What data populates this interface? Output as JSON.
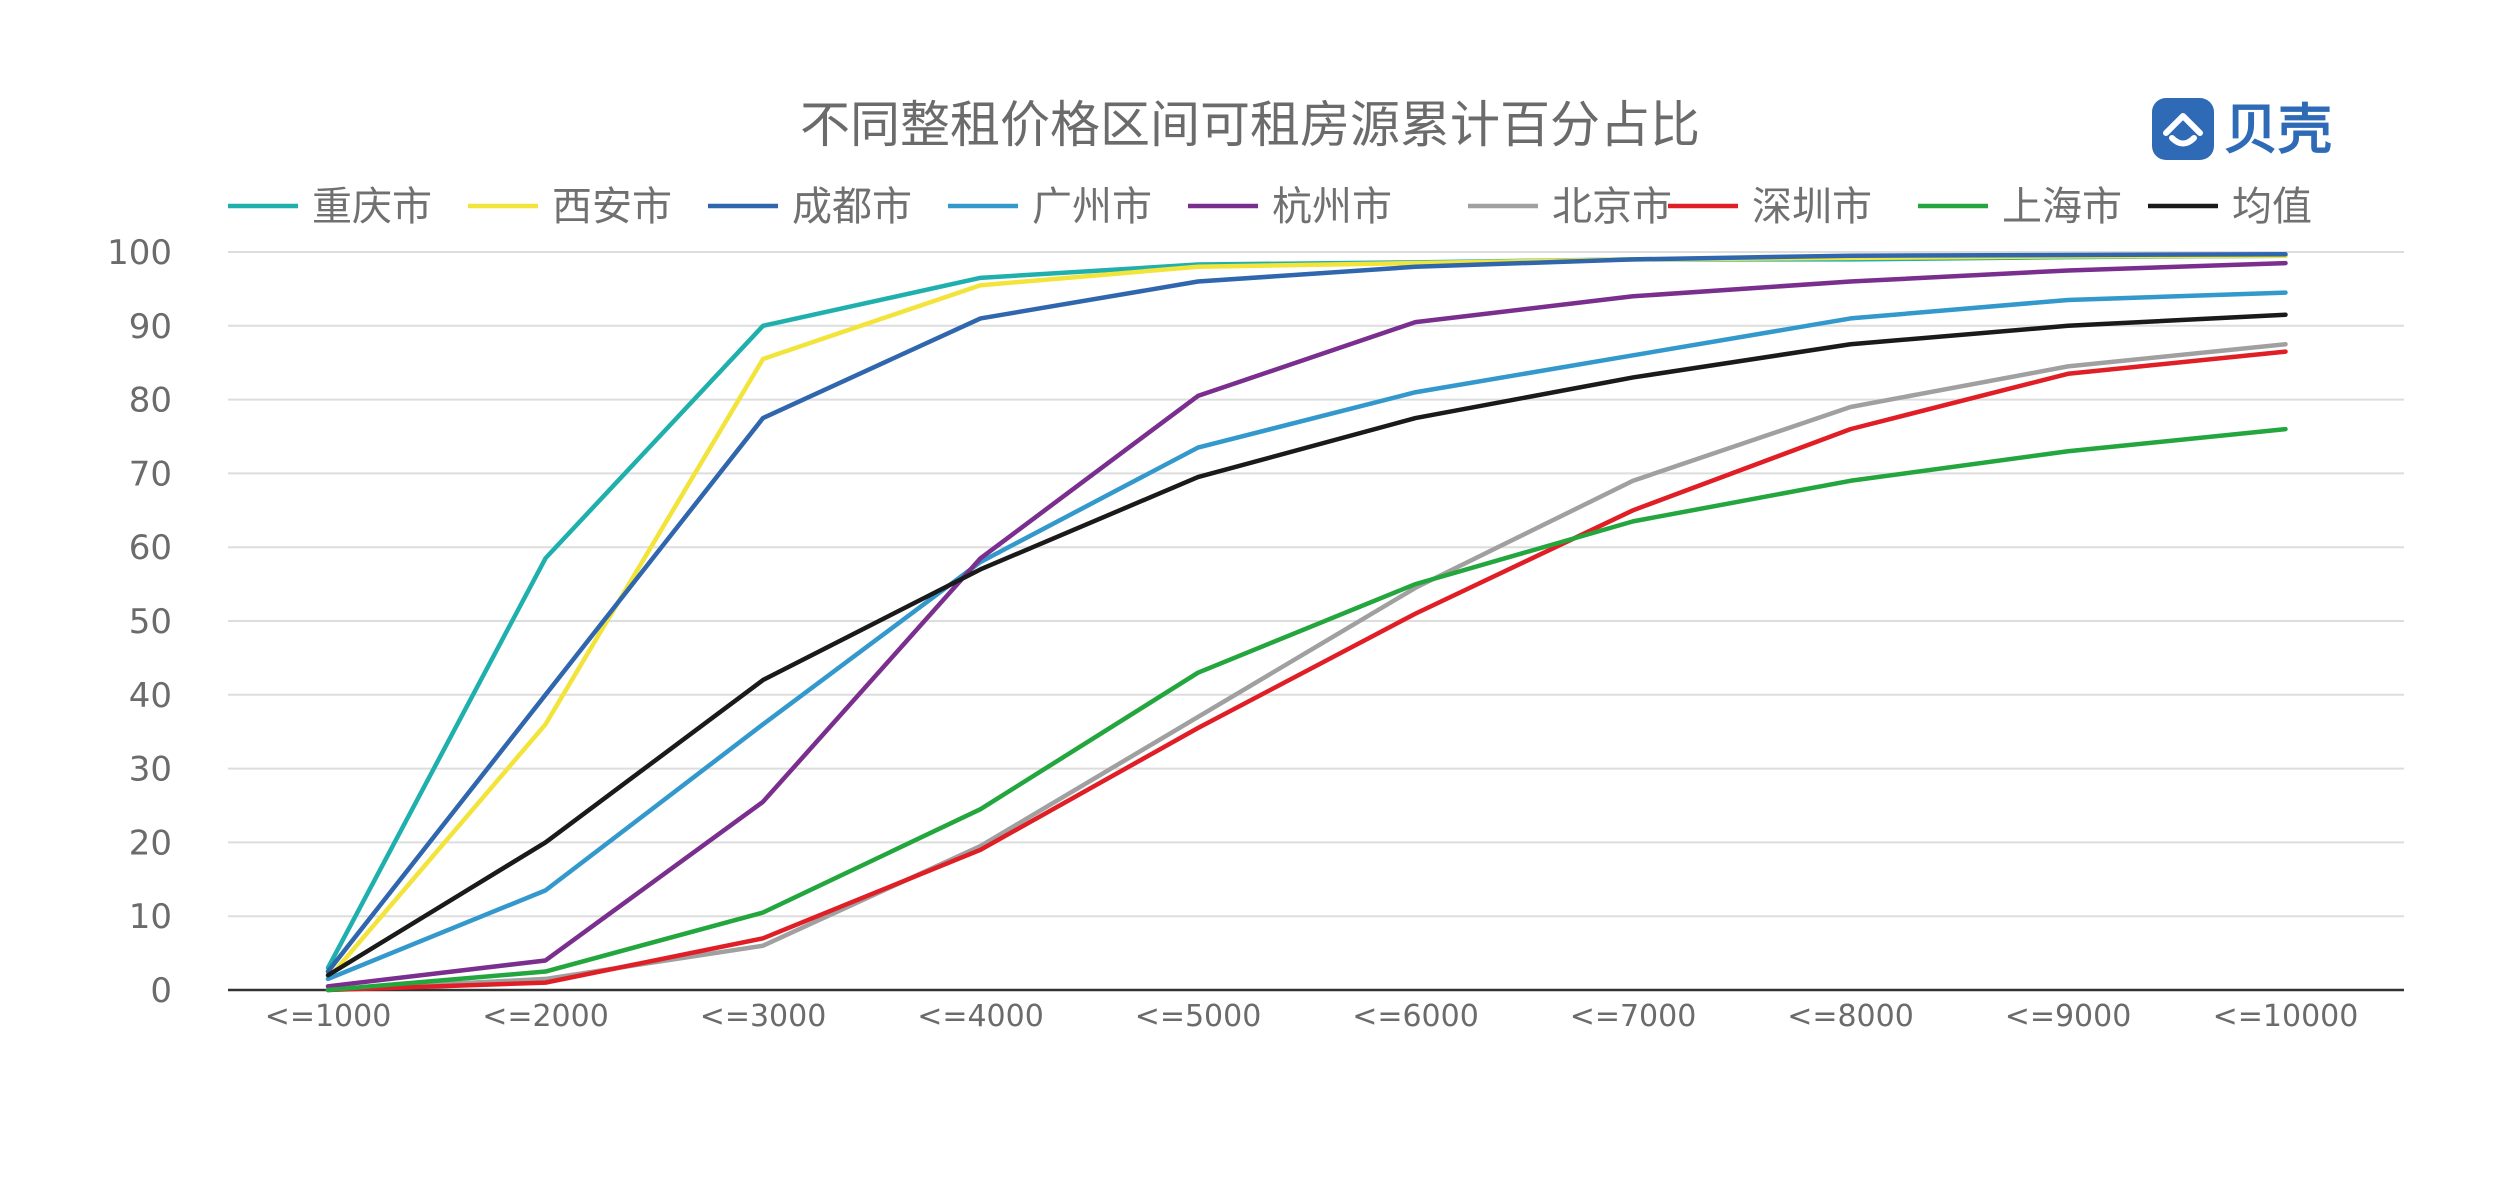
{
  "brand": {
    "name": "贝壳",
    "color": "#2f6ab7",
    "icon": "house-logo-icon"
  },
  "chart_data": {
    "type": "line",
    "title": "不同整租价格区间可租房源累计百分占比",
    "xlabel": "",
    "ylabel": "",
    "categories": [
      "<=1000",
      "<=2000",
      "<=3000",
      "<=4000",
      "<=5000",
      "<=6000",
      "<=7000",
      "<=8000",
      "<=9000",
      "<=10000"
    ],
    "ylim": [
      0,
      100
    ],
    "yticks": [
      0,
      10,
      20,
      30,
      40,
      50,
      60,
      70,
      80,
      90,
      100
    ],
    "grid": true,
    "legend_position": "top",
    "series": [
      {
        "name": "重庆市",
        "color": "#1fb0ad",
        "values": [
          3,
          58.5,
          90,
          96.5,
          98.3,
          98.6,
          99,
          99,
          99.3,
          99.5
        ]
      },
      {
        "name": "西安市",
        "color": "#f2e43a",
        "values": [
          1.5,
          36,
          85.5,
          95.5,
          98,
          98.5,
          99,
          99.2,
          99.4,
          99.5
        ]
      },
      {
        "name": "成都市",
        "color": "#2f66ad",
        "values": [
          2.5,
          40,
          77.5,
          91,
          96,
          98,
          99,
          99.5,
          99.6,
          99.7
        ]
      },
      {
        "name": "广州市",
        "color": "#3399cc",
        "values": [
          1.5,
          13.5,
          36,
          58,
          73.5,
          81,
          86,
          91,
          93.5,
          94.5
        ]
      },
      {
        "name": "杭州市",
        "color": "#7a2e8e",
        "values": [
          0.5,
          4,
          25.5,
          58.5,
          80.5,
          90.5,
          94,
          96,
          97.5,
          98.5
        ]
      },
      {
        "name": "北京市",
        "color": "#a0a0a0",
        "values": [
          0,
          1.5,
          6,
          19.5,
          37,
          54.5,
          69,
          79,
          84.5,
          87.5
        ]
      },
      {
        "name": "深圳市",
        "color": "#e01e26",
        "values": [
          0,
          1,
          7,
          19,
          35.5,
          51,
          65,
          76,
          83.5,
          86.5
        ]
      },
      {
        "name": "上海市",
        "color": "#22a63d",
        "values": [
          0,
          2.5,
          10.5,
          24.5,
          43,
          55,
          63.5,
          69,
          73,
          76
        ]
      },
      {
        "name": "均值",
        "color": "#1a1a1a",
        "values": [
          2,
          20,
          42,
          57,
          69.5,
          77.5,
          83,
          87.5,
          90,
          91.5
        ]
      }
    ]
  }
}
